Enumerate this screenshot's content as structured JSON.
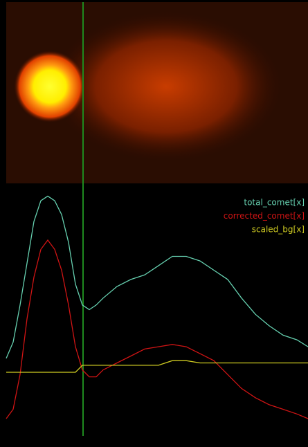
{
  "chart_data": {
    "type": "line",
    "x": [
      0,
      10,
      20,
      30,
      40,
      50,
      60,
      70,
      80,
      90,
      100,
      110,
      120,
      130,
      140,
      160,
      180,
      200,
      220,
      240,
      260,
      280,
      300,
      320,
      340,
      360,
      380,
      400,
      420,
      436
    ],
    "xlim": [
      0,
      436
    ],
    "ylim": [
      0,
      100
    ],
    "series": [
      {
        "name": "total_comet[x]",
        "color": "#66d0b0",
        "values": [
          29,
          36,
          52,
          70,
          88,
          97,
          99,
          97,
          91,
          79,
          61,
          52,
          50,
          52,
          55,
          60,
          63,
          65,
          69,
          73,
          73,
          71,
          67,
          63,
          55,
          48,
          43,
          39,
          37,
          34
        ]
      },
      {
        "name": "corrected_comet[x]",
        "color": "#d01414",
        "values": [
          3,
          7,
          22,
          46,
          64,
          76,
          80,
          76,
          67,
          52,
          34,
          24,
          21,
          21,
          24,
          27,
          30,
          33,
          34,
          35,
          34,
          31,
          28,
          22,
          16,
          12,
          9,
          7,
          5,
          3
        ]
      },
      {
        "name": "scaled_bg[x]",
        "color": "#d0cc22",
        "values": [
          23,
          23,
          23,
          23,
          23,
          23,
          23,
          23,
          23,
          23,
          23,
          26,
          26,
          26,
          26,
          26,
          26,
          26,
          26,
          28,
          28,
          27,
          27,
          27,
          27,
          27,
          27,
          27,
          27,
          27
        ]
      }
    ],
    "legend": "top-right"
  }
}
